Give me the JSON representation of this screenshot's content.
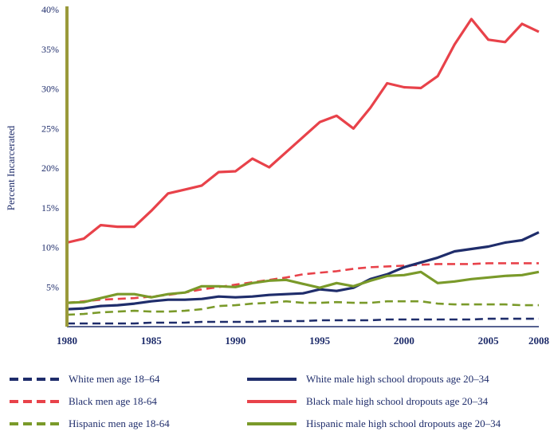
{
  "chart_data": {
    "type": "line",
    "title": "",
    "xlabel": "",
    "ylabel": "Percent Incarcerated",
    "xlim": [
      1980,
      2008
    ],
    "ylim": [
      0,
      40
    ],
    "x_ticks": [
      1980,
      1985,
      1990,
      1995,
      2000,
      2005,
      2008
    ],
    "x_tick_labels": [
      "1980",
      "1985",
      "1990",
      "1995",
      "2000",
      "2005",
      "2008"
    ],
    "y_ticks": [
      5,
      10,
      15,
      20,
      25,
      30,
      35,
      40
    ],
    "y_tick_labels": [
      "5%",
      "10%",
      "15%",
      "20%",
      "25%",
      "30%",
      "35%",
      "40%"
    ],
    "grid": false,
    "legend_position": "bottom",
    "x": [
      1980,
      1981,
      1982,
      1983,
      1984,
      1985,
      1986,
      1987,
      1988,
      1989,
      1990,
      1991,
      1992,
      1993,
      1994,
      1995,
      1996,
      1997,
      1998,
      1999,
      2000,
      2001,
      2002,
      2003,
      2004,
      2005,
      2006,
      2007,
      2008
    ],
    "series": [
      {
        "name": "White men age 18–64",
        "color": "#1f2d6b",
        "dash": true,
        "values": [
          0.4,
          0.4,
          0.4,
          0.4,
          0.4,
          0.5,
          0.5,
          0.5,
          0.6,
          0.6,
          0.6,
          0.6,
          0.7,
          0.7,
          0.7,
          0.8,
          0.8,
          0.8,
          0.8,
          0.9,
          0.9,
          0.9,
          0.9,
          0.9,
          0.9,
          1.0,
          1.0,
          1.0,
          1.0
        ]
      },
      {
        "name": "Black men age 18-64",
        "color": "#e8424a",
        "dash": true,
        "values": [
          3.0,
          3.2,
          3.4,
          3.5,
          3.6,
          3.8,
          4.0,
          4.3,
          4.7,
          5.0,
          5.3,
          5.6,
          5.9,
          6.2,
          6.6,
          6.8,
          7.0,
          7.3,
          7.5,
          7.6,
          7.7,
          7.8,
          7.9,
          7.9,
          7.9,
          8.0,
          8.0,
          8.0,
          8.0
        ]
      },
      {
        "name": "Hispanic men age 18-64",
        "color": "#7a9a2a",
        "dash": true,
        "values": [
          1.5,
          1.6,
          1.8,
          1.9,
          2.0,
          1.9,
          1.9,
          2.0,
          2.2,
          2.6,
          2.7,
          2.9,
          3.0,
          3.2,
          3.0,
          3.0,
          3.1,
          3.0,
          3.0,
          3.2,
          3.2,
          3.2,
          2.9,
          2.8,
          2.8,
          2.8,
          2.8,
          2.7,
          2.7
        ]
      },
      {
        "name": "White male high school dropouts age 20–34",
        "color": "#1f2d6b",
        "dash": false,
        "values": [
          2.2,
          2.3,
          2.6,
          2.7,
          2.9,
          3.2,
          3.4,
          3.4,
          3.5,
          3.8,
          3.7,
          3.8,
          4.0,
          4.1,
          4.2,
          4.7,
          4.5,
          4.9,
          6.0,
          6.6,
          7.5,
          8.1,
          8.7,
          9.5,
          9.8,
          10.1,
          10.6,
          10.9,
          11.9
        ]
      },
      {
        "name": "Black male high school dropouts age 20–34",
        "color": "#e8424a",
        "dash": false,
        "values": [
          10.6,
          11.1,
          12.8,
          12.6,
          12.6,
          14.6,
          16.8,
          17.3,
          17.8,
          19.5,
          19.6,
          21.2,
          20.1,
          22.0,
          23.9,
          25.8,
          26.6,
          25.0,
          27.6,
          30.7,
          30.2,
          30.1,
          31.6,
          35.6,
          38.8,
          36.2,
          35.9,
          38.2,
          37.2
        ]
      },
      {
        "name": "Hispanic male high school dropouts age 20–34",
        "color": "#7a9a2a",
        "dash": false,
        "values": [
          3.0,
          3.1,
          3.6,
          4.1,
          4.1,
          3.7,
          4.1,
          4.3,
          5.1,
          5.1,
          5.0,
          5.5,
          5.8,
          5.9,
          5.4,
          4.9,
          5.5,
          5.1,
          5.8,
          6.4,
          6.5,
          6.9,
          5.5,
          5.7,
          6.0,
          6.2,
          6.4,
          6.5,
          6.9
        ]
      }
    ]
  }
}
